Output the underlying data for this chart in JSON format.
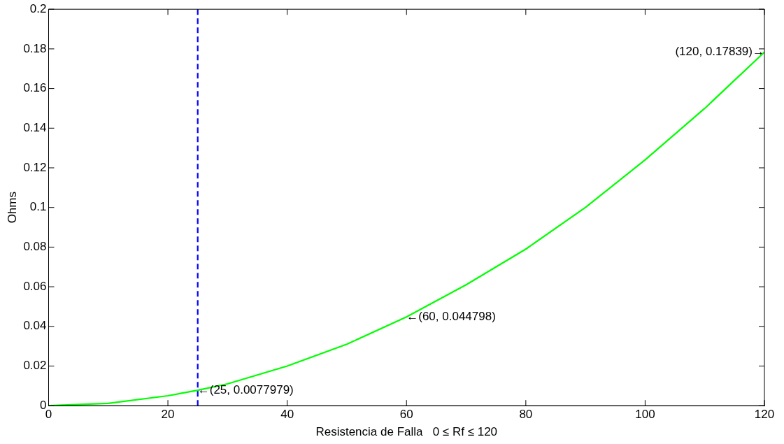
{
  "chart_data": {
    "type": "line",
    "xlabel": "Resistencia de Falla   0 ≤ Rf ≤ 120",
    "ylabel": "Ohms",
    "x": [
      0,
      10,
      20,
      25,
      30,
      40,
      50,
      60,
      70,
      80,
      90,
      100,
      110,
      120
    ],
    "series": [
      {
        "color": "#00ff00",
        "values": [
          0,
          0.0012,
          0.005,
          0.0077979,
          0.011,
          0.02,
          0.031,
          0.044798,
          0.061,
          0.079,
          0.1,
          0.124,
          0.15,
          0.17839
        ]
      }
    ],
    "xlim": [
      0,
      120
    ],
    "xticks": [
      0,
      20,
      40,
      60,
      80,
      100,
      120
    ],
    "ylim": [
      0,
      0.2
    ],
    "yticks": [
      0,
      0.02,
      0.04,
      0.06,
      0.08,
      0.1,
      0.12,
      0.14,
      0.16,
      0.18,
      0.2
    ],
    "grid": false,
    "legend": false,
    "marker": "none",
    "line_style": "solid",
    "ref_lines": [
      {
        "axis": "x",
        "value": 25,
        "color": "#0000ff",
        "line_style": "dashed"
      }
    ],
    "annotations": [
      {
        "text": "←(25, 0.0077979)",
        "x": 25,
        "y": 0.0077979
      },
      {
        "text": "←(60, 0.044798)",
        "x": 60,
        "y": 0.044798
      },
      {
        "text": "(120, 0.17839)→",
        "x": 120,
        "y": 0.17839
      }
    ]
  }
}
